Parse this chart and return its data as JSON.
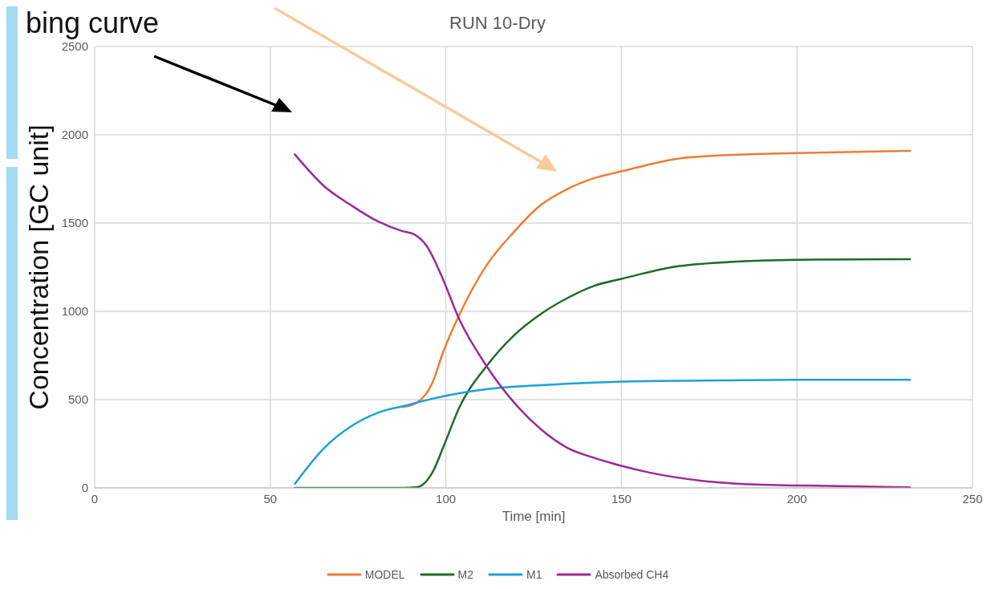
{
  "chart_data": {
    "type": "line",
    "title": "RUN 10-Dry",
    "xlabel": "Time [min]",
    "ylabel": "Concentration [GC unit]",
    "annotations": [
      "bing curve"
    ],
    "xlim": [
      0,
      250
    ],
    "xticks": [
      0,
      50,
      100,
      150,
      200,
      250
    ],
    "ylim": [
      0,
      2500
    ],
    "yticks": [
      0,
      500,
      1000,
      1500,
      2000,
      2500
    ],
    "grid": true,
    "legend": "bottom",
    "marker": "none",
    "line_style": "solid",
    "series": [
      {
        "name": "MODEL",
        "color": "#ed7d31",
        "x": [
          87.7,
          91.6,
          96.2,
          99.2,
          103.9,
          111.6,
          119.2,
          126.9,
          134.6,
          142.3,
          150,
          165.4,
          180.7,
          200,
          232.2
        ],
        "values": [
          458,
          481,
          597,
          767,
          983,
          1261,
          1446,
          1600,
          1693,
          1755,
          1793,
          1863,
          1886,
          1897,
          1909
        ]
      },
      {
        "name": "M2",
        "color": "#1e6b27",
        "x": [
          57,
          70,
          80,
          88,
          91.6,
          96.2,
          99.2,
          103.9,
          111.6,
          119.2,
          126.9,
          134.6,
          142.3,
          150,
          165.4,
          180.7,
          200,
          232.2
        ],
        "values": [
          0,
          0,
          0,
          0,
          3,
          88,
          227,
          458,
          690,
          860,
          983,
          1075,
          1145,
          1184,
          1253,
          1279,
          1292,
          1296
        ]
      },
      {
        "name": "M1",
        "color": "#1ba1dc",
        "x": [
          57,
          65.4,
          73.1,
          80.8,
          88.5,
          96.2,
          103.9,
          111.6,
          126.9,
          142.3,
          150,
          173,
          200,
          232.2
        ],
        "values": [
          23,
          227,
          350,
          427,
          466,
          505,
          536,
          559,
          582,
          597,
          602,
          608,
          613,
          613
        ]
      },
      {
        "name": "Absorbed CH4",
        "color": "#9c2a96",
        "x": [
          57,
          65.4,
          73.1,
          80.8,
          87.7,
          90.8,
          94.6,
          98.5,
          103.9,
          111.6,
          119.2,
          126.9,
          134.6,
          142.3,
          150,
          157.7,
          173,
          188.4,
          200,
          232.2
        ],
        "values": [
          1889,
          1708,
          1600,
          1508,
          1454,
          1438,
          1369,
          1214,
          952,
          690,
          489,
          335,
          227,
          170,
          125,
          88,
          40,
          19,
          14,
          3
        ]
      }
    ]
  }
}
